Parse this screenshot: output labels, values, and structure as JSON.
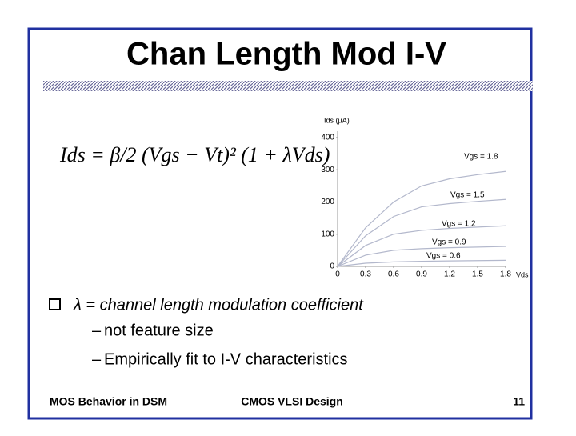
{
  "title": "Chan Length Mod I-V",
  "equation": "Ids = β/2 (Vgs − Vt)² (1 + λVds)",
  "bullets": [
    {
      "text": "λ = channel length modulation coefficient",
      "sub": [
        "not feature size",
        "Empirically fit to I-V characteristics"
      ]
    }
  ],
  "footer": {
    "left": "MOS Behavior in DSM",
    "center": "CMOS VLSI Design",
    "page": "11"
  },
  "chart_data": {
    "type": "line",
    "y_label": "Ids (μA)",
    "x_label": "Vds",
    "x": [
      0,
      0.3,
      0.6,
      0.9,
      1.2,
      1.5,
      1.8
    ],
    "xlim": [
      0,
      1.8
    ],
    "xticks": [
      0,
      0.3,
      0.6,
      0.9,
      1.2,
      1.5,
      1.8
    ],
    "ylim": [
      0,
      400
    ],
    "yticks": [
      0,
      100,
      200,
      300,
      400
    ],
    "grid": false,
    "series": [
      {
        "name": "Vgs = 1.8",
        "color": "#b3b8cc",
        "values": [
          0,
          120,
          200,
          250,
          272,
          285,
          295
        ]
      },
      {
        "name": "Vgs = 1.5",
        "color": "#b3b8cc",
        "values": [
          0,
          95,
          155,
          185,
          195,
          202,
          208
        ]
      },
      {
        "name": "Vgs = 1.2",
        "color": "#b3b8cc",
        "values": [
          0,
          65,
          100,
          112,
          118,
          122,
          126
        ]
      },
      {
        "name": "Vgs = 0.9",
        "color": "#b3b8cc",
        "values": [
          0,
          35,
          50,
          55,
          58,
          60,
          62
        ]
      },
      {
        "name": "Vgs = 0.6",
        "color": "#b3b8cc",
        "values": [
          0,
          10,
          14,
          16,
          17,
          18,
          19
        ]
      }
    ]
  }
}
